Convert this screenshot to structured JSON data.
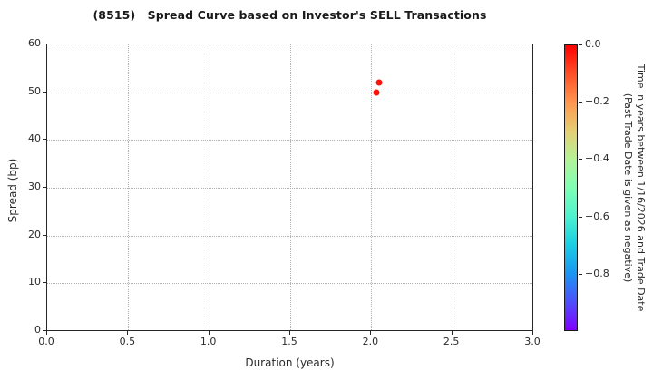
{
  "title": "(8515)   Spread Curve based on Investor's SELL Transactions",
  "chart_data": {
    "type": "scatter",
    "title": "(8515)   Spread Curve based on Investor's SELL Transactions",
    "xlabel": "Duration (years)",
    "ylabel": "Spread (bp)",
    "xlim": [
      0.0,
      3.0
    ],
    "ylim": [
      0,
      60
    ],
    "x_ticks": [
      0.0,
      0.5,
      1.0,
      1.5,
      2.0,
      2.5,
      3.0
    ],
    "x_tick_labels": [
      "0.0",
      "0.5",
      "1.0",
      "1.5",
      "2.0",
      "2.5",
      "3.0"
    ],
    "y_ticks": [
      0,
      10,
      20,
      30,
      40,
      50,
      60
    ],
    "y_tick_labels": [
      "0",
      "10",
      "20",
      "30",
      "40",
      "50",
      "60"
    ],
    "grid": true,
    "grid_style": "dotted",
    "legend_position": "none",
    "points": [
      {
        "duration": 2.03,
        "spread": 50.0,
        "time_value": 0.0,
        "color": "#fb120a"
      },
      {
        "duration": 2.05,
        "spread": 52.0,
        "time_value": 0.0,
        "color": "#fb120a"
      }
    ],
    "point_color_accent": "#fb120a",
    "colorbar": {
      "colormap": "rainbow",
      "range": [
        0.0,
        -1.0
      ],
      "tick_labels": [
        "0.0",
        "−0.2",
        "−0.4",
        "−0.6",
        "−0.8"
      ],
      "tick_values": [
        0.0,
        -0.2,
        -0.4,
        -0.6,
        -0.8
      ],
      "label_line1": "Time in years between 1/16/2026 and Trade Date",
      "label_line2": "(Past Trade Date is given as negative)",
      "gradient_stops": [
        "rgb(255,0,0) 0%",
        "rgb(255,79,40) 10%",
        "rgb(255,150,79) 20%",
        "rgb(230,206,116) 30%",
        "rgb(179,242,150) 40%",
        "rgb(128,255,180) 50%",
        "rgb(77,242,206) 60%",
        "rgb(26,206,227) 70%",
        "rgb(26,150,242) 80%",
        "rgb(77,79,252) 90%",
        "rgb(128,0,255) 100%"
      ]
    }
  }
}
